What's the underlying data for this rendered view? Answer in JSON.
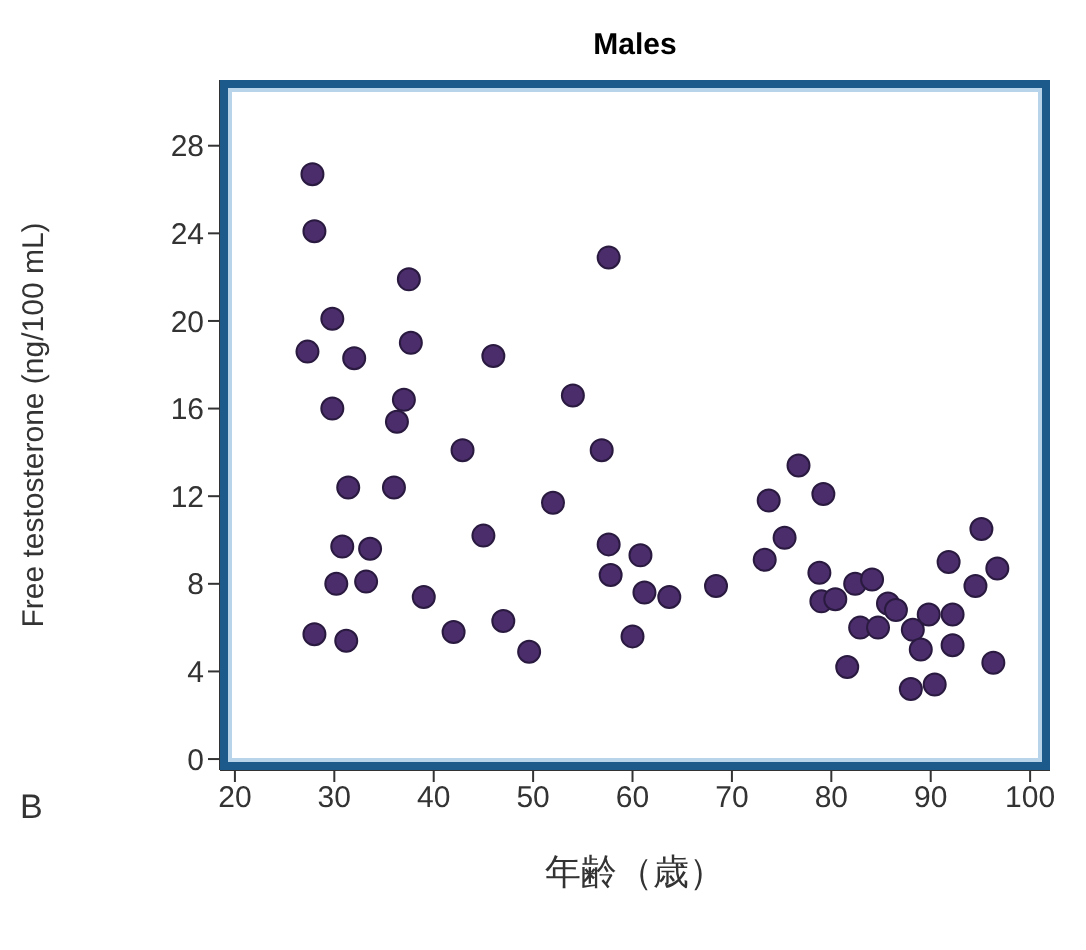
{
  "chart_data": {
    "type": "scatter",
    "title": "Males",
    "xlabel": "年齢（歳）",
    "ylabel": "Free testosterone (ng/100 mL)",
    "annotations": [
      "B"
    ],
    "xlim": [
      18.5,
      102
    ],
    "xticks": [
      20,
      30,
      40,
      50,
      60,
      70,
      80,
      90,
      100
    ],
    "ylim": [
      -0.5,
      31
    ],
    "yticks": [
      0,
      4,
      8,
      12,
      16,
      20,
      24,
      28
    ],
    "grid": false,
    "legend": false,
    "marker": "circle",
    "series": [
      {
        "color": "#4b2d6b",
        "x": [
          27.8,
          28,
          27.3,
          29.8,
          32,
          37.5,
          37.7,
          37,
          36.3,
          29.8,
          31.4,
          36,
          30.8,
          33.6,
          30.2,
          33.2,
          39,
          28,
          31.2,
          46,
          42.9,
          45,
          42,
          47,
          49.6,
          57.6,
          54,
          56.9,
          52,
          57.6,
          57.8,
          60.8,
          61.2,
          63.7,
          60,
          68.4,
          73.7,
          75.3,
          73.3,
          76.7,
          79.2,
          78.8,
          79,
          80.4,
          81.6,
          82.4,
          84.1,
          82.9,
          84.7,
          85.7,
          86.5,
          88.2,
          89.8,
          89,
          88,
          90.4,
          91.8,
          95.1,
          96.7,
          94.5,
          92.2,
          92.2,
          96.3
        ],
        "values": [
          26.7,
          24.1,
          18.6,
          20.1,
          18.3,
          21.9,
          19.0,
          16.4,
          15.4,
          16.0,
          12.4,
          12.4,
          9.7,
          9.6,
          8.0,
          8.1,
          7.4,
          5.7,
          5.4,
          18.4,
          14.1,
          10.2,
          5.8,
          6.3,
          4.9,
          22.9,
          16.6,
          14.1,
          11.7,
          9.8,
          8.4,
          9.3,
          7.6,
          7.4,
          5.6,
          7.9,
          11.8,
          10.1,
          9.1,
          13.4,
          12.1,
          8.5,
          7.2,
          7.3,
          4.2,
          8.0,
          8.2,
          6.0,
          6.0,
          7.1,
          6.8,
          5.9,
          6.6,
          5.0,
          3.2,
          3.4,
          9.0,
          10.5,
          8.7,
          7.9,
          6.6,
          5.2,
          4.4
        ]
      }
    ]
  }
}
